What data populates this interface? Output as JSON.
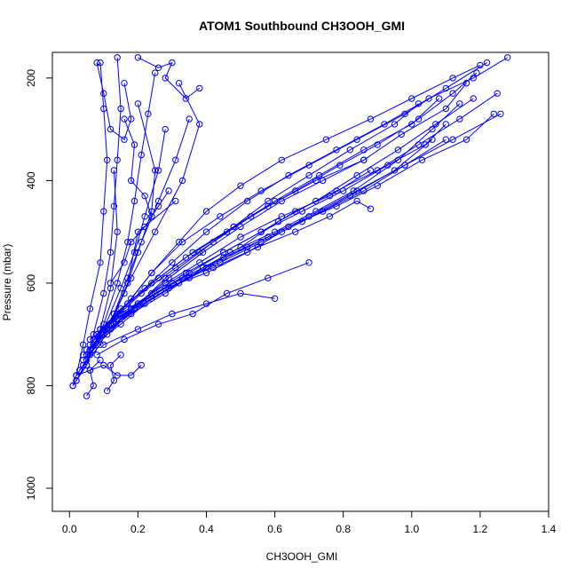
{
  "chart_data": {
    "type": "line",
    "title": "ATOM1 Southbound CH3OOH_GMI",
    "xlabel": "CH3OOH_GMI",
    "ylabel": "Pressure (mbar)",
    "xlim": [
      -0.05,
      1.4
    ],
    "ylim": [
      1045,
      150
    ],
    "y_reversed": true,
    "xticks": [
      0.0,
      0.2,
      0.4,
      0.6,
      0.8,
      1.0,
      1.2,
      1.4
    ],
    "xtick_labels": [
      "0.0",
      "0.2",
      "0.4",
      "0.6",
      "0.8",
      "1.0",
      "1.2",
      "1.4"
    ],
    "yticks": [
      200,
      400,
      600,
      800,
      1000
    ],
    "ytick_labels": [
      "200",
      "400",
      "600",
      "800",
      "1000"
    ],
    "grid": false,
    "legend": "none",
    "marker": "open-circle",
    "color": "#0000ff",
    "series": [
      {
        "x": [
          0.01,
          0.02,
          0.04,
          0.06,
          0.09,
          0.1,
          0.11,
          0.1,
          0.09
        ],
        "y": [
          800,
          780,
          720,
          650,
          560,
          460,
          360,
          260,
          170
        ]
      },
      {
        "x": [
          0.02,
          0.05,
          0.07,
          0.1,
          0.12,
          0.13,
          0.14,
          0.15,
          0.14
        ],
        "y": [
          790,
          760,
          700,
          620,
          540,
          450,
          360,
          260,
          160
        ]
      },
      {
        "x": [
          0.03,
          0.07,
          0.1,
          0.14,
          0.17,
          0.19,
          0.21,
          0.23,
          0.25
        ],
        "y": [
          770,
          730,
          680,
          600,
          520,
          440,
          350,
          270,
          190
        ]
      },
      {
        "x": [
          0.04,
          0.09,
          0.13,
          0.17,
          0.21,
          0.26,
          0.31,
          0.35
        ],
        "y": [
          760,
          720,
          660,
          590,
          520,
          440,
          360,
          280
        ]
      },
      {
        "x": [
          0.02,
          0.06,
          0.12,
          0.17,
          0.2,
          0.31
        ],
        "y": [
          780,
          740,
          680,
          600,
          500,
          440
        ]
      },
      {
        "x": [
          0.05,
          0.1,
          0.15,
          0.19,
          0.22,
          0.26,
          0.28
        ],
        "y": [
          750,
          690,
          610,
          540,
          470,
          380,
          300
        ]
      },
      {
        "x": [
          0.03,
          0.08,
          0.13,
          0.18,
          0.25,
          0.33,
          0.38,
          0.32
        ],
        "y": [
          770,
          720,
          660,
          590,
          500,
          400,
          290,
          210
        ]
      },
      {
        "x": [
          0.02,
          0.06,
          0.11,
          0.16,
          0.2,
          0.24,
          0.25,
          0.2
        ],
        "y": [
          790,
          740,
          690,
          620,
          540,
          460,
          380,
          250
        ]
      },
      {
        "x": [
          0.01,
          0.05,
          0.09,
          0.12,
          0.14,
          0.13
        ],
        "y": [
          800,
          760,
          690,
          610,
          500,
          380
        ]
      },
      {
        "x": [
          0.06,
          0.12,
          0.18,
          0.24,
          0.32,
          0.4,
          0.5,
          0.62,
          0.75,
          0.88,
          1.0,
          1.12,
          1.2
        ],
        "y": [
          730,
          680,
          630,
          580,
          520,
          460,
          410,
          360,
          320,
          280,
          240,
          200,
          175
        ]
      },
      {
        "x": [
          0.05,
          0.1,
          0.17,
          0.24,
          0.33,
          0.44,
          0.56,
          0.7,
          0.84,
          0.98,
          1.1,
          1.22
        ],
        "y": [
          740,
          690,
          640,
          580,
          520,
          470,
          420,
          370,
          320,
          270,
          220,
          170
        ]
      },
      {
        "x": [
          0.07,
          0.14,
          0.22,
          0.3,
          0.4,
          0.52,
          0.64,
          0.78,
          0.92,
          1.05,
          1.18,
          1.28
        ],
        "y": [
          710,
          660,
          610,
          560,
          500,
          440,
          390,
          340,
          290,
          240,
          200,
          160
        ]
      },
      {
        "x": [
          0.04,
          0.11,
          0.19,
          0.28,
          0.38,
          0.48,
          0.58,
          0.7,
          0.82,
          0.95,
          1.02
        ],
        "y": [
          750,
          700,
          650,
          590,
          540,
          490,
          440,
          390,
          340,
          290,
          250
        ]
      },
      {
        "x": [
          0.08,
          0.15,
          0.24,
          0.34,
          0.46,
          0.58,
          0.72,
          0.86,
          0.97,
          1.1,
          1.16
        ],
        "y": [
          700,
          650,
          600,
          550,
          500,
          450,
          400,
          360,
          310,
          260,
          210
        ]
      },
      {
        "x": [
          0.06,
          0.13,
          0.21,
          0.31,
          0.42,
          0.53,
          0.66,
          0.79,
          0.9,
          1.02,
          1.12,
          1.19
        ],
        "y": [
          720,
          670,
          620,
          570,
          520,
          470,
          420,
          370,
          330,
          280,
          230,
          190
        ]
      },
      {
        "x": [
          0.09,
          0.17,
          0.26,
          0.36,
          0.48,
          0.6,
          0.73,
          0.86,
          1.0,
          1.08
        ],
        "y": [
          690,
          640,
          590,
          540,
          490,
          440,
          390,
          340,
          290,
          240
        ]
      },
      {
        "x": [
          0.05,
          0.12,
          0.2,
          0.29,
          0.39,
          0.5,
          0.62,
          0.74,
          0.86
        ],
        "y": [
          730,
          690,
          640,
          590,
          540,
          490,
          440,
          400,
          360
        ]
      },
      {
        "x": [
          0.1,
          0.18,
          0.28,
          0.38,
          0.5,
          0.62,
          0.76,
          0.88
        ],
        "y": [
          700,
          650,
          600,
          560,
          510,
          470,
          430,
          380
        ]
      },
      {
        "x": [
          0.07,
          0.15,
          0.24,
          0.35,
          0.47,
          0.6,
          0.72,
          0.83,
          0.96,
          1.06,
          1.14
        ],
        "y": [
          720,
          680,
          630,
          590,
          540,
          500,
          460,
          420,
          360,
          300,
          250
        ]
      },
      {
        "x": [
          0.12,
          0.2,
          0.3,
          0.42,
          0.55,
          0.66,
          0.76,
          0.84,
          0.88
        ],
        "y": [
          680,
          640,
          600,
          570,
          530,
          500,
          470,
          440,
          455
        ]
      },
      {
        "x": [
          0.08,
          0.16,
          0.25,
          0.35,
          0.45,
          0.56,
          0.68,
          0.8,
          0.93,
          1.04,
          1.1
        ],
        "y": [
          700,
          660,
          620,
          580,
          540,
          500,
          460,
          420,
          370,
          330,
          290
        ]
      },
      {
        "x": [
          0.11,
          0.19,
          0.29,
          0.4,
          0.52,
          0.64,
          0.78,
          0.9,
          1.03,
          1.16,
          1.24
        ],
        "y": [
          690,
          650,
          610,
          570,
          530,
          490,
          450,
          410,
          360,
          320,
          270
        ]
      },
      {
        "x": [
          0.06,
          0.14,
          0.23,
          0.33,
          0.45,
          0.58,
          0.7,
          0.84,
          0.98,
          1.12,
          1.26
        ],
        "y": [
          710,
          670,
          630,
          590,
          550,
          510,
          470,
          420,
          370,
          320,
          270
        ]
      },
      {
        "x": [
          0.09,
          0.18,
          0.28,
          0.4,
          0.52,
          0.62,
          0.74,
          0.86,
          0.98,
          1.1
        ],
        "y": [
          690,
          650,
          610,
          580,
          540,
          500,
          460,
          420,
          370,
          320
        ]
      },
      {
        "x": [
          0.13,
          0.22,
          0.32,
          0.44,
          0.56,
          0.68,
          0.82,
          0.95,
          1.06
        ],
        "y": [
          680,
          640,
          600,
          560,
          520,
          480,
          430,
          380,
          320
        ]
      },
      {
        "x": [
          0.04,
          0.1,
          0.18,
          0.28,
          0.39,
          0.5,
          0.61,
          0.72,
          0.84,
          0.96,
          1.07,
          1.18
        ],
        "y": [
          740,
          700,
          660,
          620,
          570,
          530,
          480,
          440,
          390,
          340,
          290,
          240
        ]
      },
      {
        "x": [
          0.15,
          0.24,
          0.34,
          0.45,
          0.56,
          0.66,
          0.78,
          0.9,
          1.02,
          1.14,
          1.25
        ],
        "y": [
          660,
          620,
          580,
          540,
          500,
          460,
          420,
          380,
          330,
          280,
          230
        ]
      },
      {
        "x": [
          0.1,
          0.2,
          0.3,
          0.4,
          0.5,
          0.6
        ],
        "y": [
          720,
          690,
          660,
          640,
          620,
          630
        ]
      },
      {
        "x": [
          0.08,
          0.16,
          0.26,
          0.36,
          0.46,
          0.58,
          0.7
        ],
        "y": [
          740,
          710,
          680,
          660,
          620,
          590,
          560
        ]
      },
      {
        "x": [
          0.02,
          0.06,
          0.1,
          0.14,
          0.18,
          0.21
        ],
        "y": [
          780,
          770,
          760,
          780,
          780,
          760
        ]
      },
      {
        "x": [
          0.05,
          0.07,
          0.06,
          0.09
        ],
        "y": [
          820,
          800,
          770,
          750
        ]
      },
      {
        "x": [
          0.11,
          0.13,
          0.12,
          0.15
        ],
        "y": [
          810,
          790,
          760,
          740
        ]
      },
      {
        "x": [
          0.2,
          0.26,
          0.3,
          0.28,
          0.34,
          0.38
        ],
        "y": [
          160,
          180,
          170,
          200,
          240,
          220
        ]
      },
      {
        "x": [
          0.08,
          0.1,
          0.12,
          0.16,
          0.18,
          0.16
        ],
        "y": [
          170,
          230,
          300,
          320,
          280,
          210
        ]
      },
      {
        "x": [
          0.16,
          0.19,
          0.18,
          0.22,
          0.24
        ],
        "y": [
          280,
          330,
          400,
          430,
          470
        ]
      },
      {
        "x": [
          0.12,
          0.16,
          0.18,
          0.22,
          0.26,
          0.29
        ],
        "y": [
          600,
          560,
          520,
          490,
          450,
          420
        ]
      }
    ]
  }
}
